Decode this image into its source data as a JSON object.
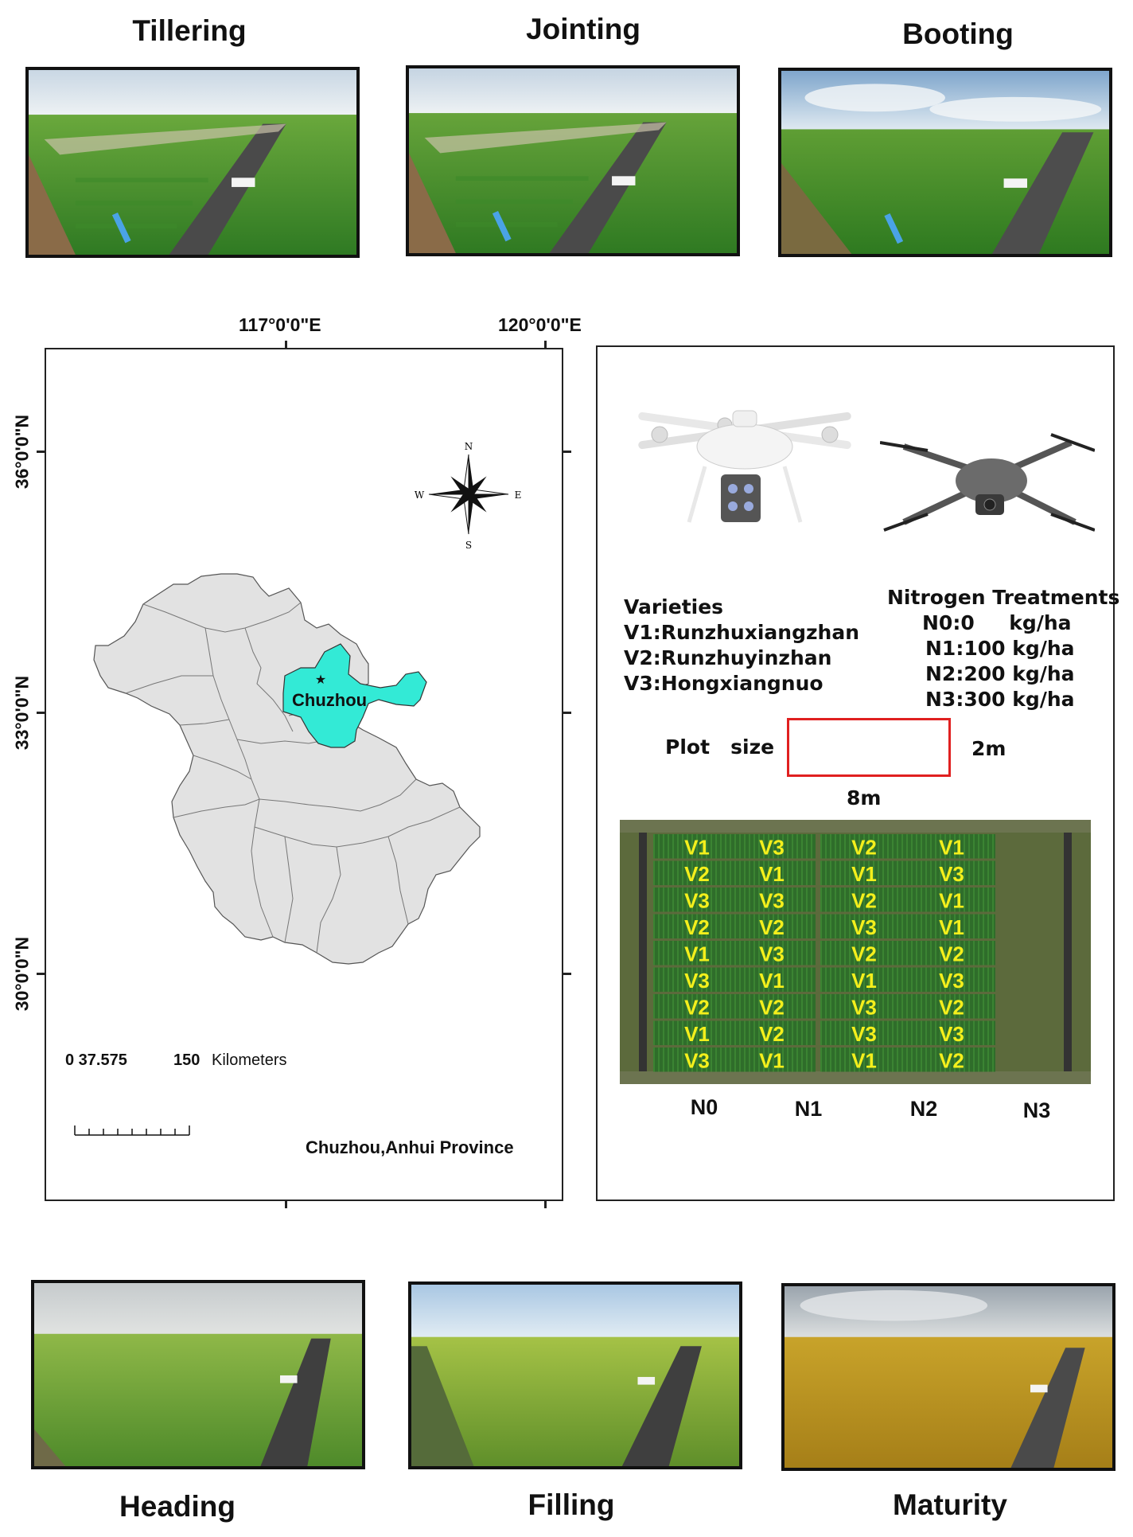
{
  "stages_top": [
    {
      "label": "Tillering"
    },
    {
      "label": "Jointing"
    },
    {
      "label": "Booting"
    }
  ],
  "stages_bottom": [
    {
      "label": "Heading"
    },
    {
      "label": "Filling"
    },
    {
      "label": "Maturity"
    }
  ],
  "map": {
    "lon_labels": [
      "117°0'0\"E",
      "120°0'0\"E"
    ],
    "lat_labels": [
      "36°0'0\"N",
      "33°0'0\"N",
      "30°0'0\"N"
    ],
    "compass": {
      "n": "N",
      "s": "S",
      "e": "E",
      "w": "W"
    },
    "highlight_label": "Chuzhou",
    "highlight_color": "#33ead6",
    "region_color": "#e2e2e2",
    "scale_label_left": "0 37.575",
    "scale_label_right": "150",
    "scale_unit": "Kilometers",
    "caption": "Chuzhou,Anhui Province"
  },
  "experiment": {
    "varieties_title": "Varieties",
    "varieties": [
      "V1:Runzhuxiangzhan",
      "V2:Runzhuyinzhan",
      "V3:Hongxiangnuo"
    ],
    "nitrogen_title": "Nitrogen Treatments",
    "nitrogen": [
      "N0:0     kg/ha",
      "N1:100 kg/ha",
      "N2:200 kg/ha",
      "N3:300 kg/ha"
    ],
    "plot_size_label": "Plot   size",
    "plot_width_label": "8m",
    "plot_height_label": "2m",
    "plot_rect_color": "#e02020",
    "grid_columns": [
      "N0",
      "N1",
      "N2",
      "N3"
    ],
    "grid": [
      [
        "V1",
        "V2",
        "V3",
        "V2",
        "V1",
        "V3",
        "V2",
        "V1",
        "V3"
      ],
      [
        "V3",
        "V1",
        "V3",
        "V2",
        "V3",
        "V1",
        "V2",
        "V2",
        "V1"
      ],
      [
        "V2",
        "V1",
        "V2",
        "V3",
        "V2",
        "V1",
        "V3",
        "V3",
        "V1"
      ],
      [
        "V1",
        "V3",
        "V1",
        "V1",
        "V2",
        "V3",
        "V2",
        "V3",
        "V2"
      ]
    ]
  }
}
